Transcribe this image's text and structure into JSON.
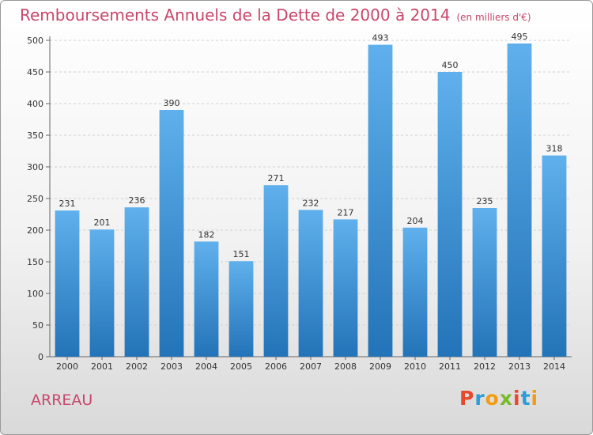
{
  "chart_data": {
    "type": "bar",
    "title": "Remboursements Annuels de la Dette de 2000 à 2014",
    "unit": "(en milliers d'€)",
    "categories": [
      "2000",
      "2001",
      "2002",
      "2003",
      "2004",
      "2005",
      "2006",
      "2007",
      "2008",
      "2009",
      "2010",
      "2011",
      "2012",
      "2013",
      "2014"
    ],
    "values": [
      231,
      201,
      236,
      390,
      182,
      151,
      271,
      232,
      217,
      493,
      204,
      450,
      235,
      495,
      318
    ],
    "ylim": [
      0,
      500
    ],
    "yticks": [
      0,
      50,
      100,
      150,
      200,
      250,
      300,
      350,
      400,
      450,
      500
    ],
    "grid": true,
    "bar_color": "#3a8fd8"
  },
  "footer": {
    "city": "ARREAU",
    "logo": [
      "P",
      "r",
      "o",
      "x",
      "i",
      "t",
      "i"
    ],
    "logo_colors": [
      "#e8482c",
      "#2a9cd8",
      "#f39c12",
      "#7ab929",
      "#e8482c",
      "#2a9cd8",
      "#f39c12"
    ]
  }
}
